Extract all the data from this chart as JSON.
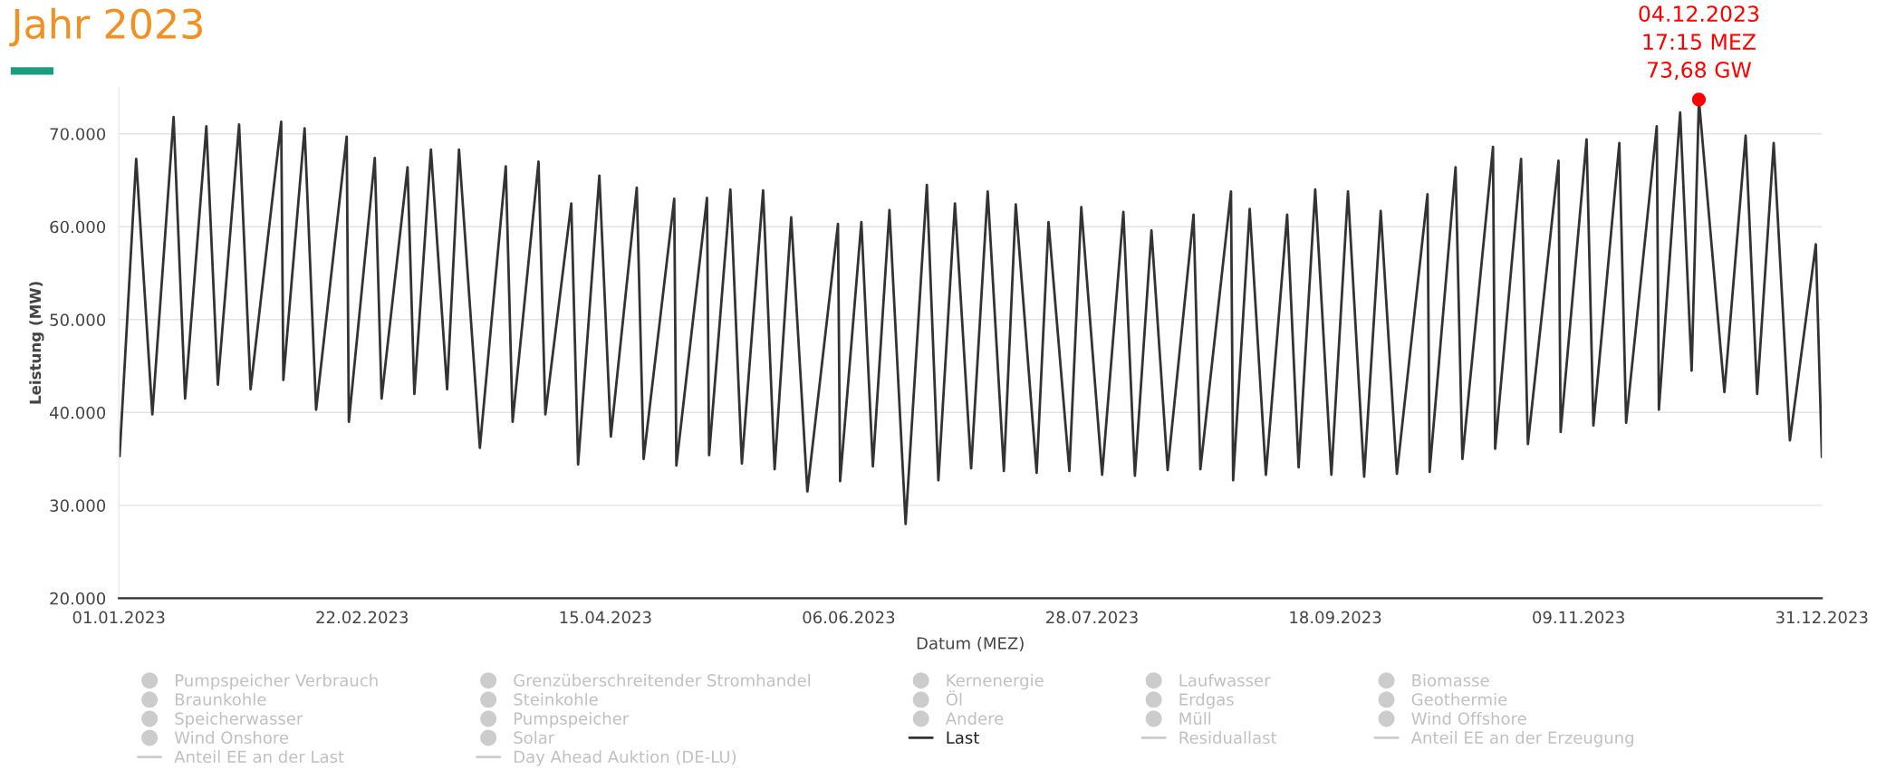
{
  "chart_data": {
    "type": "line",
    "title": "Jahr 2023",
    "xlabel": "Datum (MEZ)",
    "ylabel": "Leistung (MW)",
    "xlim": [
      "2023-01-01",
      "2023-12-31"
    ],
    "xticks": [
      {
        "value": "2023-01-01",
        "label": "01.01.2023"
      },
      {
        "value": "2023-02-22",
        "label": "22.02.2023"
      },
      {
        "value": "2023-04-15",
        "label": "15.04.2023"
      },
      {
        "value": "2023-06-06",
        "label": "06.06.2023"
      },
      {
        "value": "2023-07-28",
        "label": "28.07.2023"
      },
      {
        "value": "2023-09-18",
        "label": "18.09.2023"
      },
      {
        "value": "2023-11-09",
        "label": "09.11.2023"
      },
      {
        "value": "2023-12-31",
        "label": "31.12.2023"
      }
    ],
    "ylim": [
      20000,
      75000
    ],
    "yticks": [
      {
        "value": 20000,
        "label": "20.000"
      },
      {
        "value": 30000,
        "label": "30.000"
      },
      {
        "value": 40000,
        "label": "40.000"
      },
      {
        "value": 50000,
        "label": "50.000"
      },
      {
        "value": 60000,
        "label": "60.000"
      },
      {
        "value": 70000,
        "label": "70.000"
      }
    ],
    "grid": "y",
    "legend": "bottom",
    "annotations": [
      {
        "text": "04.12.2023\n17:15 MEZ\n73,68 GW",
        "x": "2023-12-04T17:15",
        "y": 73680
      }
    ],
    "series": [
      {
        "name": "Pumpspeicher Verbrauch",
        "type": "area",
        "color": "#cccccc"
      },
      {
        "name": "Grenzüberschreitender Stromhandel",
        "type": "area",
        "color": "#cccccc"
      },
      {
        "name": "Kernenergie",
        "type": "area",
        "color": "#cccccc"
      },
      {
        "name": "Laufwasser",
        "type": "area",
        "color": "#cccccc"
      },
      {
        "name": "Biomasse",
        "type": "area",
        "color": "#cccccc"
      },
      {
        "name": "Braunkohle",
        "type": "area",
        "color": "#cccccc"
      },
      {
        "name": "Steinkohle",
        "type": "area",
        "color": "#cccccc"
      },
      {
        "name": "Öl",
        "type": "area",
        "color": "#cccccc"
      },
      {
        "name": "Erdgas",
        "type": "area",
        "color": "#cccccc"
      },
      {
        "name": "Geothermie",
        "type": "area",
        "color": "#cccccc"
      },
      {
        "name": "Speicherwasser",
        "type": "area",
        "color": "#cccccc"
      },
      {
        "name": "Pumpspeicher",
        "type": "area",
        "color": "#cccccc"
      },
      {
        "name": "Andere",
        "type": "area",
        "color": "#cccccc"
      },
      {
        "name": "Müll",
        "type": "area",
        "color": "#cccccc"
      },
      {
        "name": "Wind Offshore",
        "type": "area",
        "color": "#cccccc"
      },
      {
        "name": "Wind Onshore",
        "type": "area",
        "color": "#cccccc"
      },
      {
        "name": "Solar",
        "type": "area",
        "color": "#cccccc"
      },
      {
        "name": "Last",
        "color": "#333333",
        "x": [
          "2023-01-01T04:00",
          "2023-01-04T17:00",
          "2023-01-08T04:00",
          "2023-01-12T17:00",
          "2023-01-15T04:00",
          "2023-01-19T17:00",
          "2023-01-22T04:00",
          "2023-01-26T17:00",
          "2023-01-29T04:00",
          "2023-02-04T17:00",
          "2023-02-05T04:00",
          "2023-02-09T17:00",
          "2023-02-12T04:00",
          "2023-02-18T17:00",
          "2023-02-19T04:00",
          "2023-02-24T17:00",
          "2023-02-26T04:00",
          "2023-03-03T17:00",
          "2023-03-05T04:00",
          "2023-03-08T17:00",
          "2023-03-12T04:00",
          "2023-03-14T17:00",
          "2023-03-19T04:00",
          "2023-03-24T17:00",
          "2023-03-26T04:00",
          "2023-03-31T17:00",
          "2023-04-02T04:00",
          "2023-04-07T17:00",
          "2023-04-09T04:00",
          "2023-04-13T17:00",
          "2023-04-16T04:00",
          "2023-04-21T17:00",
          "2023-04-23T04:00",
          "2023-04-29T17:00",
          "2023-04-30T04:00",
          "2023-05-06T17:00",
          "2023-05-07T04:00",
          "2023-05-11T17:00",
          "2023-05-14T04:00",
          "2023-05-18T17:00",
          "2023-05-21T04:00",
          "2023-05-24T17:00",
          "2023-05-28T04:00",
          "2023-06-03T17:00",
          "2023-06-04T04:00",
          "2023-06-08T17:00",
          "2023-06-11T04:00",
          "2023-06-14T17:00",
          "2023-06-18T04:00",
          "2023-06-22T17:00",
          "2023-06-25T04:00",
          "2023-06-28T17:00",
          "2023-07-02T04:00",
          "2023-07-05T17:00",
          "2023-07-09T04:00",
          "2023-07-11T17:00",
          "2023-07-16T04:00",
          "2023-07-18T17:00",
          "2023-07-23T04:00",
          "2023-07-25T17:00",
          "2023-07-30T04:00",
          "2023-08-03T17:00",
          "2023-08-06T04:00",
          "2023-08-09T17:00",
          "2023-08-13T04:00",
          "2023-08-18T17:00",
          "2023-08-20T04:00",
          "2023-08-26T17:00",
          "2023-08-27T04:00",
          "2023-08-30T17:00",
          "2023-09-03T04:00",
          "2023-09-07T17:00",
          "2023-09-10T04:00",
          "2023-09-13T17:00",
          "2023-09-17T04:00",
          "2023-09-20T17:00",
          "2023-09-24T04:00",
          "2023-09-27T17:00",
          "2023-10-01T04:00",
          "2023-10-07T17:00",
          "2023-10-08T04:00",
          "2023-10-13T17:00",
          "2023-10-15T04:00",
          "2023-10-21T17:00",
          "2023-10-22T04:00",
          "2023-10-27T17:00",
          "2023-10-29T04:00",
          "2023-11-04T17:00",
          "2023-11-05T04:00",
          "2023-11-10T17:00",
          "2023-11-12T04:00",
          "2023-11-17T17:00",
          "2023-11-19T04:00",
          "2023-11-25T17:00",
          "2023-11-26T04:00",
          "2023-11-30T17:00",
          "2023-12-03T04:00",
          "2023-12-04T17:15",
          "2023-12-10T04:00",
          "2023-12-14T17:00",
          "2023-12-17T04:00",
          "2023-12-20T17:00",
          "2023-12-24T04:00",
          "2023-12-29T17:00",
          "2023-12-31T00:00"
        ],
        "values": [
          35300,
          67300,
          39800,
          71800,
          41500,
          70800,
          43000,
          71000,
          42500,
          71300,
          43500,
          70600,
          40300,
          69700,
          39000,
          67400,
          41500,
          66400,
          42000,
          68300,
          42500,
          68300,
          36200,
          66500,
          39000,
          67000,
          39800,
          62500,
          34400,
          65500,
          37400,
          64200,
          35000,
          63000,
          34300,
          63100,
          35400,
          64000,
          34500,
          63900,
          33900,
          61000,
          31500,
          60300,
          32600,
          60500,
          34200,
          61800,
          28000,
          64500,
          32700,
          62500,
          34000,
          63800,
          33700,
          62400,
          33500,
          60500,
          33700,
          62100,
          33300,
          61600,
          33200,
          59600,
          33800,
          61300,
          33900,
          63800,
          32700,
          61900,
          33300,
          61300,
          34100,
          64000,
          33300,
          63800,
          33100,
          61700,
          33400,
          63500,
          33600,
          66400,
          35000,
          68600,
          36100,
          67300,
          36600,
          67100,
          37900,
          69400,
          38600,
          69000,
          38900,
          70800,
          40300,
          72300,
          44500,
          73680,
          42200,
          69800,
          42000,
          69000,
          37000,
          58100,
          35200
        ]
      },
      {
        "name": "Residuallast",
        "type": "line",
        "color": "#cccccc"
      },
      {
        "name": "Anteil EE an der Erzeugung",
        "type": "line",
        "color": "#cccccc"
      },
      {
        "name": "Anteil EE an der Last",
        "type": "line",
        "color": "#cccccc"
      },
      {
        "name": "Day Ahead Auktion (DE-LU)",
        "type": "line",
        "color": "#cccccc"
      }
    ]
  }
}
